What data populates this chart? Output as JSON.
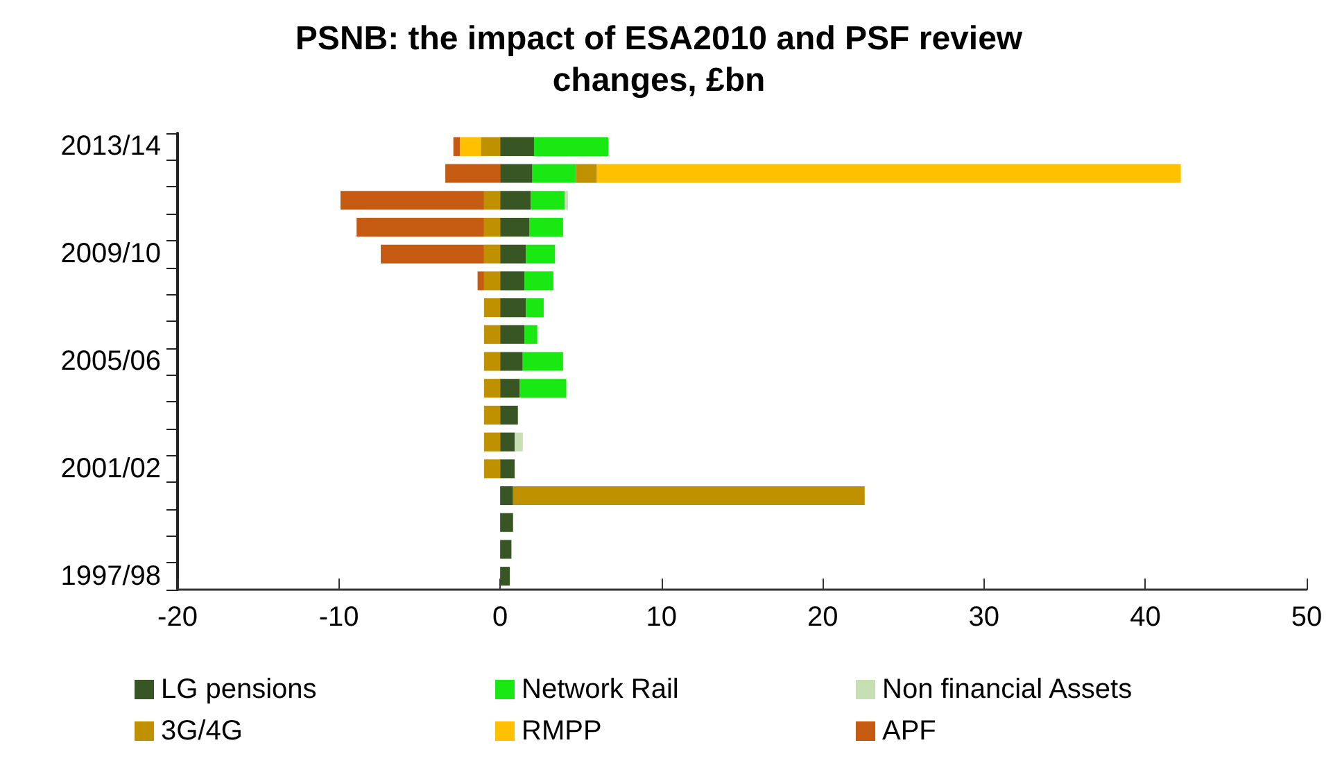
{
  "chart_data": {
    "type": "bar",
    "title": "PSNB: the impact of ESA2010 and PSF review\nchanges, £bn",
    "orientation": "horizontal",
    "stacked": true,
    "categories": [
      "2013/14",
      null,
      null,
      null,
      "2009/10",
      null,
      null,
      null,
      "2005/06",
      null,
      null,
      null,
      "2001/02",
      null,
      null,
      null,
      "1997/98"
    ],
    "series": [
      {
        "name": "LG pensions",
        "color": "#375623",
        "values": [
          2.1,
          2.0,
          1.9,
          1.8,
          1.6,
          1.5,
          1.6,
          1.5,
          1.4,
          1.2,
          1.1,
          0.9,
          0.9,
          0.8,
          0.8,
          0.7,
          0.6
        ]
      },
      {
        "name": "Network Rail",
        "color": "#19e812",
        "values": [
          4.6,
          2.7,
          2.1,
          2.1,
          1.8,
          1.8,
          1.1,
          0.8,
          2.5,
          2.9,
          null,
          null,
          null,
          null,
          null,
          null,
          null
        ]
      },
      {
        "name": "Non financial Assets",
        "color": "#c6e0b4",
        "values": [
          null,
          null,
          0.2,
          null,
          null,
          null,
          null,
          null,
          null,
          null,
          null,
          0.5,
          null,
          null,
          null,
          null,
          null
        ]
      },
      {
        "name": "3G/4G",
        "color": "#bf9000",
        "values": [
          -1.2,
          1.3,
          -1.0,
          -1.0,
          -1.0,
          -1.0,
          -1.0,
          -1.0,
          -1.0,
          -1.0,
          -1.0,
          -1.0,
          -1.0,
          21.8,
          null,
          null,
          null
        ]
      },
      {
        "name": "RMPP",
        "color": "#ffc000",
        "values": [
          -1.3,
          36.2,
          null,
          null,
          null,
          null,
          null,
          null,
          null,
          null,
          null,
          null,
          null,
          null,
          null,
          null,
          null
        ]
      },
      {
        "name": "APF",
        "color": "#c55a11",
        "values": [
          -0.4,
          -3.4,
          -8.9,
          -7.9,
          -6.4,
          -0.4,
          null,
          null,
          null,
          null,
          null,
          null,
          null,
          null,
          null,
          null,
          null
        ]
      }
    ],
    "xlim": [
      -20,
      50
    ],
    "xticks": [
      -20,
      -10,
      0,
      10,
      20,
      30,
      40,
      50
    ],
    "grid": false,
    "legend": "bottom"
  }
}
